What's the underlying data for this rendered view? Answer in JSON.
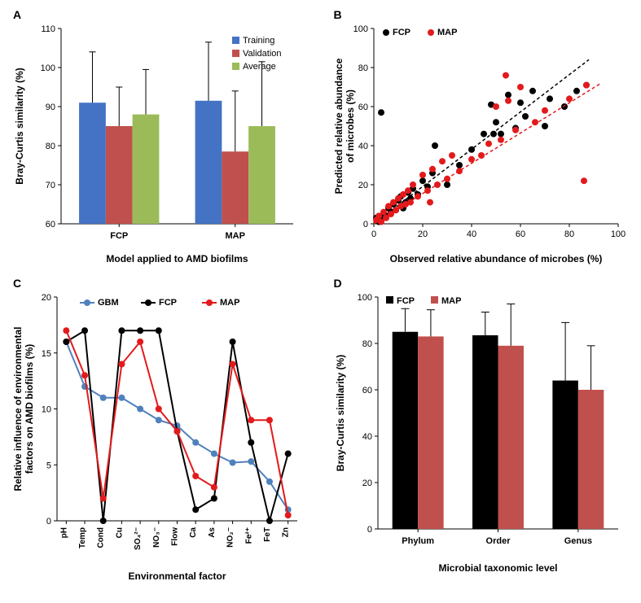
{
  "panelA": {
    "type": "bar",
    "label": "A",
    "xlabel": "Model applied to AMD biofilms",
    "ylabel": "Bray-Curtis similarity (%)",
    "ylim": [
      60,
      110
    ],
    "ytick_step": 10,
    "groups": [
      "FCP",
      "MAP"
    ],
    "series": [
      {
        "name": "Training",
        "color": "#4472c4",
        "values": [
          91,
          91.5
        ],
        "errors": [
          13,
          15
        ]
      },
      {
        "name": "Validation",
        "color": "#c0504d",
        "values": [
          85,
          78.5
        ],
        "errors": [
          10,
          15.5
        ]
      },
      {
        "name": "Average",
        "color": "#9bbb59",
        "values": [
          88,
          85
        ],
        "errors": [
          11.5,
          16.5
        ]
      }
    ],
    "bar_width": 0.23,
    "background_color": "#ffffff",
    "title_fontsize": 14,
    "label_fontsize": 12,
    "tick_fontsize": 11
  },
  "panelB": {
    "type": "scatter",
    "label": "B",
    "xlabel": "Observed relative abundance of microbes (%)",
    "ylabel": "Predicted relative abundance of microbes (%)",
    "xlim": [
      0,
      100
    ],
    "ylim": [
      0,
      100
    ],
    "xtick_step": 20,
    "ytick_step": 20,
    "series": [
      {
        "name": "FCP",
        "color": "#000000",
        "marker": "circle",
        "marker_size": 4,
        "points": [
          [
            2,
            1
          ],
          [
            1,
            3
          ],
          [
            3,
            2
          ],
          [
            4,
            5
          ],
          [
            5,
            4
          ],
          [
            6,
            8
          ],
          [
            7,
            6
          ],
          [
            8,
            10
          ],
          [
            9,
            7
          ],
          [
            10,
            12
          ],
          [
            12,
            8
          ],
          [
            11,
            14
          ],
          [
            13,
            11
          ],
          [
            14,
            16
          ],
          [
            15,
            13
          ],
          [
            16,
            18
          ],
          [
            18,
            15
          ],
          [
            20,
            22
          ],
          [
            22,
            19
          ],
          [
            24,
            26
          ],
          [
            25,
            40
          ],
          [
            30,
            20
          ],
          [
            35,
            30
          ],
          [
            40,
            38
          ],
          [
            45,
            46
          ],
          [
            48,
            61
          ],
          [
            49,
            46
          ],
          [
            50,
            52
          ],
          [
            52,
            46
          ],
          [
            55,
            66
          ],
          [
            58,
            49
          ],
          [
            60,
            62
          ],
          [
            62,
            55
          ],
          [
            65,
            68
          ],
          [
            70,
            50
          ],
          [
            72,
            64
          ],
          [
            78,
            60
          ],
          [
            83,
            68
          ],
          [
            87,
            71
          ],
          [
            3,
            57
          ]
        ],
        "trend": {
          "dash": "4,3",
          "width": 1.5,
          "from": [
            0,
            0
          ],
          "to": [
            88,
            84
          ]
        }
      },
      {
        "name": "MAP",
        "color": "#e31a1c",
        "marker": "circle",
        "marker_size": 4,
        "points": [
          [
            1,
            2
          ],
          [
            2,
            4
          ],
          [
            3,
            1
          ],
          [
            4,
            6
          ],
          [
            5,
            3
          ],
          [
            6,
            9
          ],
          [
            7,
            5
          ],
          [
            8,
            11
          ],
          [
            9,
            7
          ],
          [
            10,
            13
          ],
          [
            11,
            9
          ],
          [
            12,
            15
          ],
          [
            13,
            10
          ],
          [
            14,
            17
          ],
          [
            15,
            11
          ],
          [
            16,
            20
          ],
          [
            18,
            14
          ],
          [
            20,
            25
          ],
          [
            22,
            17
          ],
          [
            24,
            28
          ],
          [
            26,
            20
          ],
          [
            28,
            32
          ],
          [
            30,
            23
          ],
          [
            32,
            35
          ],
          [
            35,
            27
          ],
          [
            23,
            11
          ],
          [
            40,
            33
          ],
          [
            44,
            35
          ],
          [
            47,
            41
          ],
          [
            50,
            60
          ],
          [
            52,
            43
          ],
          [
            55,
            63
          ],
          [
            58,
            48
          ],
          [
            60,
            70
          ],
          [
            66,
            52
          ],
          [
            54,
            76
          ],
          [
            70,
            58
          ],
          [
            80,
            64
          ],
          [
            86,
            22
          ],
          [
            87,
            71
          ]
        ],
        "trend": {
          "dash": "4,3",
          "width": 1.5,
          "from": [
            0,
            0
          ],
          "to": [
            93,
            72
          ]
        }
      }
    ],
    "background_color": "#ffffff",
    "label_fontsize": 12,
    "tick_fontsize": 11
  },
  "panelC": {
    "type": "line",
    "label": "C",
    "xlabel": "Environmental factor",
    "ylabel": "Relative influence of environmental factors on AMD biofilms (%)",
    "ylim": [
      0,
      20
    ],
    "ytick_step": 5,
    "categories": [
      "pH",
      "Temp",
      "Cond",
      "Cu",
      "SO₄²⁻",
      "NO₃⁻",
      "Flow",
      "Ca",
      "As",
      "NO₂⁻",
      "Fe²⁺",
      "FeT",
      "Zn"
    ],
    "series": [
      {
        "name": "GBM",
        "color": "#4f81bd",
        "marker": "circle",
        "marker_size": 4,
        "line_width": 2,
        "values": [
          16,
          12,
          11,
          11,
          10,
          9,
          8.5,
          7,
          6,
          5.2,
          5.3,
          3.5,
          1
        ]
      },
      {
        "name": "FCP",
        "color": "#000000",
        "marker": "circle",
        "marker_size": 4,
        "line_width": 2,
        "values": [
          16,
          17,
          0,
          17,
          17,
          17,
          8,
          1,
          2,
          16,
          7,
          0,
          6
        ]
      },
      {
        "name": "MAP",
        "color": "#e31a1c",
        "marker": "circle",
        "marker_size": 4,
        "line_width": 2,
        "values": [
          17,
          13,
          2,
          14,
          16,
          10,
          8,
          4,
          3,
          14,
          9,
          9,
          0.5
        ]
      }
    ],
    "background_color": "#ffffff",
    "label_fontsize": 12,
    "tick_fontsize": 10
  },
  "panelD": {
    "type": "bar",
    "label": "D",
    "xlabel": "Microbial taxonomic level",
    "ylabel": "Bray-Curtis similarity (%)",
    "ylim": [
      0,
      100
    ],
    "ytick_step": 20,
    "groups": [
      "Phylum",
      "Order",
      "Genus"
    ],
    "series": [
      {
        "name": "FCP",
        "color": "#000000",
        "values": [
          85,
          83.5,
          64
        ],
        "errors": [
          10,
          10,
          25
        ]
      },
      {
        "name": "MAP",
        "color": "#c0504d",
        "values": [
          83,
          79,
          60
        ],
        "errors": [
          11.5,
          18,
          19
        ]
      }
    ],
    "bar_width": 0.32,
    "background_color": "#ffffff",
    "label_fontsize": 12,
    "tick_fontsize": 11
  }
}
